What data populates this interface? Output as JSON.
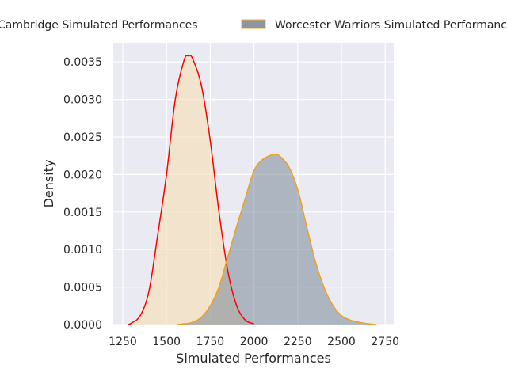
{
  "chart_data": {
    "type": "area",
    "title": "",
    "xlabel": "Simulated Performances",
    "ylabel": "Density",
    "xlim": [
      1195,
      2835
    ],
    "ylim": [
      0,
      0.00376
    ],
    "xticks": [
      1250,
      1500,
      1750,
      2000,
      2250,
      2500,
      2750
    ],
    "xtick_labels": [
      "1250",
      "1500",
      "1750",
      "2000",
      "2250",
      "2500",
      "2750"
    ],
    "yticks": [
      0,
      0.0005,
      0.001,
      0.0015,
      0.002,
      0.0025,
      0.003,
      0.0035
    ],
    "ytick_labels": [
      "0.0000",
      "0.0005",
      "0.0010",
      "0.0015",
      "0.0020",
      "0.0025",
      "0.0030",
      "0.0035"
    ],
    "grid": true,
    "legend_placement": "top-center",
    "series": [
      {
        "name": "Cambridge Simulated Performances",
        "line_color": "#ff0000",
        "fill_color": "#f5deb3",
        "x": [
          1280,
          1300,
          1350,
          1400,
          1450,
          1500,
          1550,
          1600,
          1625,
          1650,
          1700,
          1750,
          1800,
          1850,
          1900,
          1950,
          2000
        ],
        "y": [
          0,
          2e-05,
          0.00012,
          0.00045,
          0.0012,
          0.002,
          0.003,
          0.00352,
          0.00358,
          0.00354,
          0.00318,
          0.00245,
          0.0015,
          0.00072,
          0.00026,
          6e-05,
          1e-05
        ]
      },
      {
        "name": "Worcester Warriors Simulated Performances",
        "line_color": "#f0a020",
        "fill_color": "#708090",
        "x": [
          1560,
          1600,
          1650,
          1700,
          1750,
          1800,
          1850,
          1900,
          1950,
          2000,
          2050,
          2100,
          2125,
          2150,
          2200,
          2250,
          2300,
          2350,
          2400,
          2450,
          2500,
          2550,
          2600,
          2650,
          2700
        ],
        "y": [
          0,
          1e-05,
          3e-05,
          0.0001,
          0.00025,
          0.0005,
          0.0009,
          0.0013,
          0.00168,
          0.00205,
          0.0022,
          0.00226,
          0.00227,
          0.00224,
          0.0021,
          0.0018,
          0.00132,
          0.00085,
          0.0005,
          0.00026,
          0.00012,
          6e-05,
          3e-05,
          1e-05,
          0
        ]
      }
    ]
  },
  "legend": {
    "item1": "Cambridge Simulated Performances",
    "item2": "Worcester Warriors Simulated Performances"
  }
}
